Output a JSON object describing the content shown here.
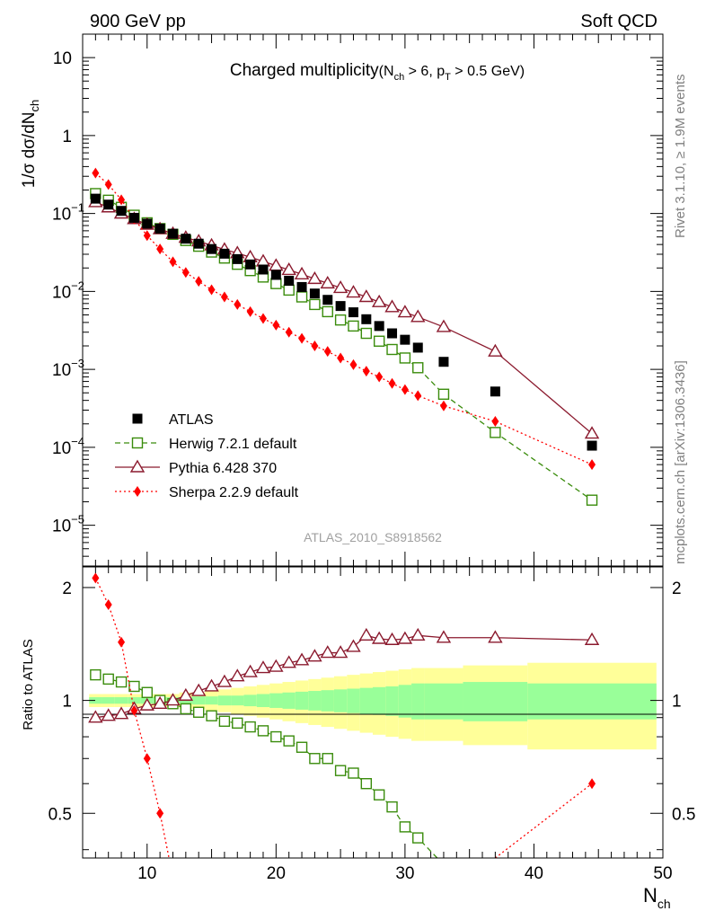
{
  "header": {
    "left": "900 GeV pp",
    "right": "Soft QCD"
  },
  "side_text": {
    "rivet": "Rivet 3.1.10, ≥ 1.9M events",
    "source": "mcplots.cern.ch [arXiv:1306.3436]"
  },
  "colors": {
    "atlas": "#000000",
    "herwig": "#3a8c0c",
    "pythia": "#8b1a2e",
    "sherpa": "#ff0000",
    "band_outer": "#ffff99",
    "band_inner": "#99ff99"
  },
  "chart_data": [
    {
      "type": "scatter",
      "panel": "main",
      "title": "Charged multiplicity",
      "title_cond": {
        "open": "(N",
        "ch_sub": "ch",
        "mid": " > 6, p",
        "t_sub": "T",
        "close": " > 0.5 GeV)"
      },
      "analysis_tag": "ATLAS_2010_S8918562",
      "ylabel": {
        "text": "1/σ dσ/dN",
        "sub": "ch"
      },
      "yscale": "log",
      "ylim": [
        3e-06,
        20
      ],
      "xlim": [
        5,
        50
      ],
      "ytick_labels": [
        {
          "base": "10",
          "exp": "−5",
          "value": 1e-05
        },
        {
          "base": "10",
          "exp": "−4",
          "value": 0.0001
        },
        {
          "base": "10",
          "exp": "−3",
          "value": 0.001
        },
        {
          "base": "10",
          "exp": "−2",
          "value": 0.01
        },
        {
          "base": "10",
          "exp": "−1",
          "value": 0.1
        },
        {
          "base": "1",
          "exp": "",
          "value": 1
        },
        {
          "base": "10",
          "exp": "",
          "value": 10
        }
      ],
      "legend_position": "bottom-left",
      "series": [
        {
          "name": "ATLAS",
          "marker": "square-filled",
          "line": "none",
          "x": [
            6,
            7,
            8,
            9,
            10,
            11,
            12,
            13,
            14,
            15,
            16,
            17,
            18,
            19,
            20,
            21,
            22,
            23,
            24,
            25,
            26,
            27,
            28,
            29,
            30,
            31,
            33,
            37,
            44.5
          ],
          "y": [
            0.155,
            0.13,
            0.108,
            0.088,
            0.074,
            0.064,
            0.055,
            0.0475,
            0.041,
            0.035,
            0.0305,
            0.026,
            0.0222,
            0.0191,
            0.0163,
            0.0137,
            0.0114,
            0.0094,
            0.0078,
            0.0065,
            0.0054,
            0.0044,
            0.0036,
            0.0029,
            0.0024,
            0.0019,
            0.00125,
            0.00052,
            0.000105
          ]
        },
        {
          "name": "Herwig 7.2.1 default",
          "marker": "square-open",
          "line": "dashed",
          "x": [
            6,
            7,
            8,
            9,
            10,
            11,
            12,
            13,
            14,
            15,
            16,
            17,
            18,
            19,
            20,
            21,
            22,
            23,
            24,
            25,
            26,
            27,
            28,
            29,
            30,
            31,
            33,
            37,
            44.5
          ],
          "y": [
            0.18,
            0.148,
            0.12,
            0.095,
            0.076,
            0.064,
            0.054,
            0.045,
            0.038,
            0.032,
            0.0268,
            0.0223,
            0.0185,
            0.0153,
            0.0126,
            0.0104,
            0.0085,
            0.0068,
            0.0055,
            0.0043,
            0.0036,
            0.0029,
            0.0023,
            0.0018,
            0.0014,
            0.00105,
            0.00048,
            0.000155,
            2.1e-05
          ]
        },
        {
          "name": "Pythia 6.428 370",
          "marker": "triangle-open",
          "line": "solid",
          "x": [
            6,
            7,
            8,
            9,
            10,
            11,
            12,
            13,
            14,
            15,
            16,
            17,
            18,
            19,
            20,
            21,
            22,
            23,
            24,
            25,
            26,
            27,
            28,
            29,
            30,
            31,
            33,
            37,
            44.5
          ],
          "y": [
            0.14,
            0.12,
            0.1,
            0.085,
            0.072,
            0.063,
            0.055,
            0.049,
            0.044,
            0.039,
            0.0345,
            0.031,
            0.0275,
            0.0243,
            0.0214,
            0.0189,
            0.0166,
            0.0145,
            0.0127,
            0.0111,
            0.0097,
            0.0085,
            0.0073,
            0.0063,
            0.0054,
            0.0047,
            0.0035,
            0.0017,
            0.00015
          ]
        },
        {
          "name": "Sherpa 2.2.9 default",
          "marker": "diamond-filled",
          "line": "dotted",
          "x": [
            6,
            7,
            8,
            9,
            10,
            11,
            12,
            13,
            14,
            15,
            16,
            17,
            18,
            19,
            20,
            21,
            22,
            23,
            24,
            25,
            26,
            27,
            28,
            29,
            30,
            31,
            33,
            37,
            44.5
          ],
          "y": [
            0.33,
            0.235,
            0.15,
            0.085,
            0.052,
            0.035,
            0.024,
            0.0175,
            0.0135,
            0.0105,
            0.0085,
            0.0068,
            0.0055,
            0.0045,
            0.0037,
            0.003,
            0.0025,
            0.002,
            0.0017,
            0.0014,
            0.00115,
            0.00095,
            0.0008,
            0.00066,
            0.00055,
            0.00046,
            0.00034,
            0.000215,
            6e-05
          ]
        }
      ]
    },
    {
      "type": "scatter",
      "panel": "ratio",
      "ylabel": "Ratio to ATLAS",
      "xlabel": {
        "text": "N",
        "sub": "ch"
      },
      "xlim": [
        5,
        50
      ],
      "ylim": [
        0.38,
        2.27
      ],
      "x_ticks": [
        10,
        20,
        30,
        40,
        50
      ],
      "y_ticks": [
        0.5,
        1,
        2
      ],
      "uncertainty_bands": [
        {
          "xlo": 5.5,
          "xhi": 6.5,
          "inner": 0.02,
          "outer": 0.04
        },
        {
          "xlo": 6.5,
          "xhi": 7.5,
          "inner": 0.02,
          "outer": 0.04
        },
        {
          "xlo": 7.5,
          "xhi": 8.5,
          "inner": 0.02,
          "outer": 0.04
        },
        {
          "xlo": 8.5,
          "xhi": 9.5,
          "inner": 0.02,
          "outer": 0.04
        },
        {
          "xlo": 9.5,
          "xhi": 10.5,
          "inner": 0.02,
          "outer": 0.04
        },
        {
          "xlo": 10.5,
          "xhi": 11.5,
          "inner": 0.02,
          "outer": 0.04
        },
        {
          "xlo": 11.5,
          "xhi": 12.5,
          "inner": 0.02,
          "outer": 0.04
        },
        {
          "xlo": 12.5,
          "xhi": 13.5,
          "inner": 0.02,
          "outer": 0.05
        },
        {
          "xlo": 13.5,
          "xhi": 14.5,
          "inner": 0.025,
          "outer": 0.05
        },
        {
          "xlo": 14.5,
          "xhi": 15.5,
          "inner": 0.025,
          "outer": 0.06
        },
        {
          "xlo": 15.5,
          "xhi": 16.5,
          "inner": 0.03,
          "outer": 0.07
        },
        {
          "xlo": 16.5,
          "xhi": 17.5,
          "inner": 0.03,
          "outer": 0.08
        },
        {
          "xlo": 17.5,
          "xhi": 18.5,
          "inner": 0.035,
          "outer": 0.09
        },
        {
          "xlo": 18.5,
          "xhi": 19.5,
          "inner": 0.04,
          "outer": 0.1
        },
        {
          "xlo": 19.5,
          "xhi": 20.5,
          "inner": 0.045,
          "outer": 0.11
        },
        {
          "xlo": 20.5,
          "xhi": 21.5,
          "inner": 0.05,
          "outer": 0.12
        },
        {
          "xlo": 21.5,
          "xhi": 22.5,
          "inner": 0.055,
          "outer": 0.13
        },
        {
          "xlo": 22.5,
          "xhi": 23.5,
          "inner": 0.06,
          "outer": 0.14
        },
        {
          "xlo": 23.5,
          "xhi": 24.5,
          "inner": 0.065,
          "outer": 0.15
        },
        {
          "xlo": 24.5,
          "xhi": 25.5,
          "inner": 0.07,
          "outer": 0.16
        },
        {
          "xlo": 25.5,
          "xhi": 26.5,
          "inner": 0.075,
          "outer": 0.17
        },
        {
          "xlo": 26.5,
          "xhi": 27.5,
          "inner": 0.08,
          "outer": 0.18
        },
        {
          "xlo": 27.5,
          "xhi": 28.5,
          "inner": 0.085,
          "outer": 0.19
        },
        {
          "xlo": 28.5,
          "xhi": 29.5,
          "inner": 0.09,
          "outer": 0.2
        },
        {
          "xlo": 29.5,
          "xhi": 30.5,
          "inner": 0.1,
          "outer": 0.21
        },
        {
          "xlo": 30.5,
          "xhi": 31.5,
          "inner": 0.11,
          "outer": 0.22
        },
        {
          "xlo": 31.5,
          "xhi": 34.5,
          "inner": 0.11,
          "outer": 0.22
        },
        {
          "xlo": 34.5,
          "xhi": 39.5,
          "inner": 0.12,
          "outer": 0.24
        },
        {
          "xlo": 39.5,
          "xhi": 49.5,
          "inner": 0.11,
          "outer": 0.26
        }
      ],
      "series": [
        {
          "name": "Herwig 7.2.1 default",
          "x": [
            6,
            7,
            8,
            9,
            10,
            11,
            12,
            13,
            14,
            15,
            16,
            17,
            18,
            19,
            20,
            21,
            22,
            23,
            24,
            25,
            26,
            27,
            28,
            29,
            30,
            31,
            32.5
          ],
          "y": [
            1.17,
            1.14,
            1.12,
            1.09,
            1.05,
            1.0,
            0.98,
            0.95,
            0.93,
            0.91,
            0.88,
            0.87,
            0.85,
            0.83,
            0.8,
            0.78,
            0.75,
            0.7,
            0.7,
            0.65,
            0.64,
            0.6,
            0.56,
            0.52,
            0.46,
            0.43,
            0.38
          ]
        },
        {
          "name": "Pythia 6.428 370",
          "x": [
            6,
            7,
            8,
            9,
            10,
            11,
            12,
            13,
            14,
            15,
            16,
            17,
            18,
            19,
            20,
            21,
            22,
            23,
            24,
            25,
            26,
            27,
            28,
            29,
            30,
            31,
            33,
            37,
            44.5
          ],
          "y": [
            0.9,
            0.91,
            0.92,
            0.95,
            0.97,
            0.98,
            1.0,
            1.03,
            1.06,
            1.09,
            1.12,
            1.16,
            1.19,
            1.22,
            1.23,
            1.26,
            1.28,
            1.31,
            1.34,
            1.34,
            1.39,
            1.49,
            1.46,
            1.45,
            1.46,
            1.49,
            1.47,
            1.47,
            1.45
          ]
        },
        {
          "name": "Sherpa 2.2.9 default",
          "x": [
            6,
            7,
            8,
            9,
            10,
            11,
            11.7,
            37,
            44.5
          ],
          "y": [
            2.12,
            1.8,
            1.43,
            0.94,
            0.7,
            0.5,
            0.38,
            0.38,
            0.6
          ]
        }
      ]
    }
  ]
}
